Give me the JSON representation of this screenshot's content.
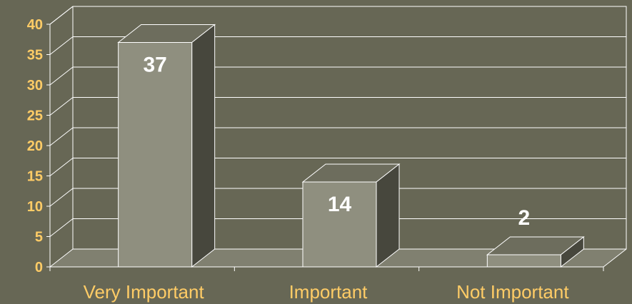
{
  "chart_data": {
    "type": "bar",
    "categories": [
      "Very Important",
      "Important",
      "Not Important"
    ],
    "values": [
      37,
      14,
      2
    ],
    "data_labels": [
      "37",
      "14",
      "2"
    ],
    "title": "",
    "xlabel": "",
    "ylabel": "",
    "ylim": [
      0,
      40
    ],
    "yticks": [
      "0",
      "5",
      "10",
      "15",
      "20",
      "25",
      "30",
      "35",
      "40"
    ],
    "grid": true,
    "three_d": true,
    "colors": {
      "background": "#676755",
      "floor": "#808070",
      "bar_front": "#8f8f7f",
      "bar_top": "#6d6d5d",
      "bar_side": "#47473d",
      "grid": "#ffffff",
      "tick_text": "#ffcc66",
      "data_label": "#ffffff"
    }
  }
}
